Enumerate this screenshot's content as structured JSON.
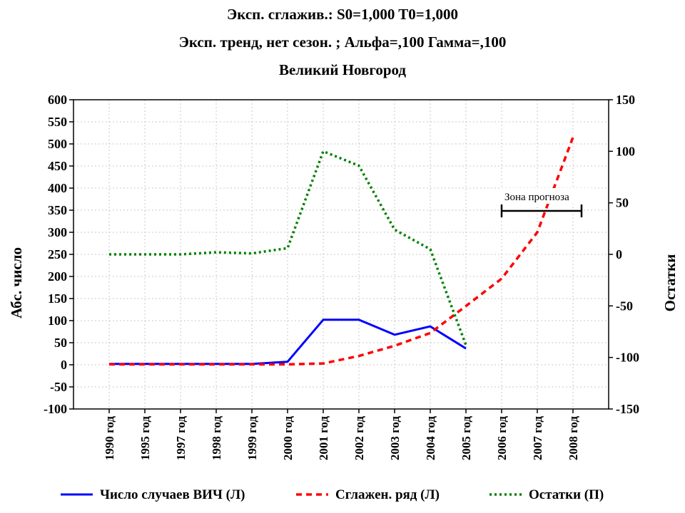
{
  "chart_data": {
    "type": "line",
    "title": [
      "Эксп. сглажив.: S0=1,000 T0=1,000",
      "Эксп. тренд, нет сезон. ; Альфа=,100 Гамма=,100",
      "Великий Новгород"
    ],
    "categories": [
      "1990 год",
      "1995 год",
      "1997 год",
      "1998 год",
      "1999 год",
      "2000 год",
      "2001 год",
      "2002 год",
      "2003 год",
      "2004 год",
      "2005 год",
      "2006 год",
      "2007 год",
      "2008 год"
    ],
    "ylabel_left": "Абс. число",
    "ylabel_right": "Остатки",
    "ylim_left": [
      -100,
      600
    ],
    "yticks_left": [
      -100,
      -50,
      0,
      50,
      100,
      150,
      200,
      250,
      300,
      350,
      400,
      450,
      500,
      550,
      600
    ],
    "ylim_right": [
      -150,
      150
    ],
    "yticks_right": [
      -150,
      -100,
      -50,
      0,
      50,
      100,
      150
    ],
    "grid": true,
    "legend_position": "bottom",
    "series": [
      {
        "name": "Число случаев ВИЧ (Л)",
        "axis": "left",
        "color": "#0000ff",
        "style": "solid",
        "values": [
          2,
          2,
          2,
          2,
          2,
          7,
          102,
          102,
          68,
          87,
          37,
          null,
          null,
          null
        ]
      },
      {
        "name": "Сглажен. ряд (Л)",
        "axis": "left",
        "color": "#ff0000",
        "style": "dashed",
        "values": [
          1,
          1,
          1,
          1,
          1,
          1,
          3,
          20,
          43,
          72,
          133,
          195,
          300,
          515
        ]
      },
      {
        "name": "Остатки (П)",
        "axis": "right",
        "color": "#008000",
        "style": "dotted",
        "values": [
          0,
          0,
          0,
          2,
          1,
          6,
          100,
          86,
          24,
          5,
          -88,
          null,
          null,
          null
        ]
      }
    ],
    "annotation": {
      "label": "Зона прогноза",
      "x_range": [
        "2006 год",
        "2008 год"
      ]
    }
  }
}
